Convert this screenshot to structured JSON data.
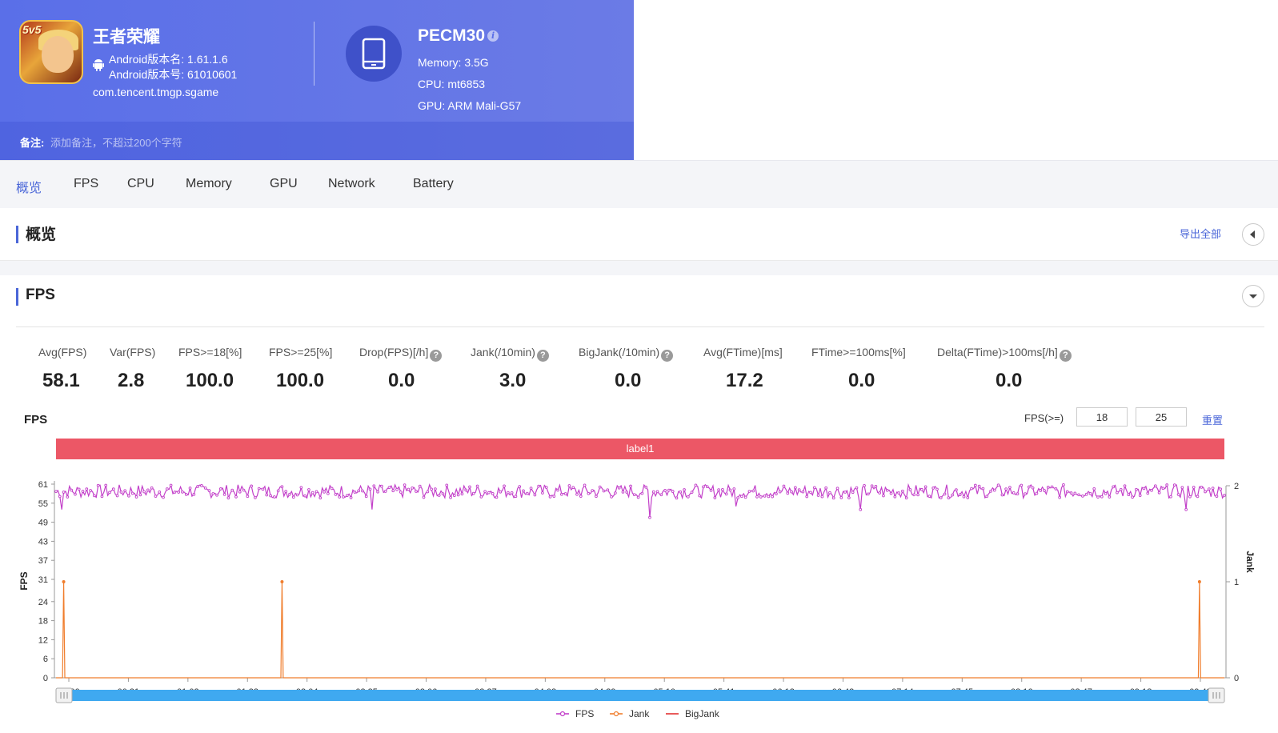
{
  "app": {
    "name": "王者荣耀",
    "version_name": "Android版本名: 1.61.1.6",
    "version_code": "Android版本号: 61010601",
    "package": "com.tencent.tmgp.sgame",
    "icon_badge": "5v5"
  },
  "device": {
    "model": "PECM30",
    "memory": "Memory: 3.5G",
    "cpu": "CPU: mt6853",
    "gpu": "GPU: ARM Mali-G57"
  },
  "remark": {
    "label": "备注:",
    "placeholder": "添加备注，不超过200个字符"
  },
  "tabs": [
    "概览",
    "FPS",
    "CPU",
    "Memory",
    "GPU",
    "Network",
    "Battery"
  ],
  "active_tab": "概览",
  "overview": {
    "title": "概览",
    "export_label": "导出全部"
  },
  "fps_section": {
    "title": "FPS",
    "stats": [
      {
        "label": "Avg(FPS)",
        "value": "58.1",
        "help": false
      },
      {
        "label": "Var(FPS)",
        "value": "2.8",
        "help": false
      },
      {
        "label": "FPS>=18[%]",
        "value": "100.0",
        "help": false
      },
      {
        "label": "FPS>=25[%]",
        "value": "100.0",
        "help": false
      },
      {
        "label": "Drop(FPS)[/h]",
        "value": "0.0",
        "help": true
      },
      {
        "label": "Jank(/10min)",
        "value": "3.0",
        "help": true
      },
      {
        "label": "BigJank(/10min)",
        "value": "0.0",
        "help": true
      },
      {
        "label": "Avg(FTime)[ms]",
        "value": "17.2",
        "help": false
      },
      {
        "label": "FTime>=100ms[%]",
        "value": "0.0",
        "help": false
      },
      {
        "label": "Delta(FTime)>100ms[/h]",
        "value": "0.0",
        "help": true
      }
    ],
    "chart_title": "FPS",
    "threshold_label": "FPS(>=)",
    "threshold_low": "18",
    "threshold_high": "25",
    "reset_label": "重置",
    "label_band": "label1"
  },
  "colors": {
    "accent": "#4a66d8",
    "fps": "#c23fc9",
    "jank": "#f07d2c",
    "bigjank": "#e23232",
    "label_band": "#ec5766",
    "slider": "#3fa9f0"
  },
  "chart_data": {
    "type": "line",
    "xlabel": "",
    "ylabel": "FPS",
    "y2label": "Jank",
    "y_ticks": [
      0,
      6,
      12,
      18,
      24,
      31,
      37,
      43,
      49,
      55,
      61
    ],
    "y2_ticks": [
      0,
      1,
      2
    ],
    "ylim": [
      0,
      61
    ],
    "y2lim": [
      0,
      2
    ],
    "x_ticks": [
      "00:00",
      "00:31",
      "01:02",
      "01:33",
      "02:04",
      "02:35",
      "03:06",
      "03:37",
      "04:08",
      "04:39",
      "05:10",
      "05:41",
      "06:12",
      "06:43",
      "07:14",
      "07:45",
      "08:16",
      "08:47",
      "09:18",
      "09:49"
    ],
    "duration_seconds": 610,
    "series": [
      {
        "name": "FPS",
        "axis": "left",
        "mean": 58.1,
        "min": 50.5,
        "max": 61,
        "dips": [
          {
            "t": 3,
            "v": 53
          },
          {
            "t": 165,
            "v": 53
          },
          {
            "t": 310,
            "v": 50.5
          },
          {
            "t": 355,
            "v": 54
          },
          {
            "t": 420,
            "v": 53
          },
          {
            "t": 590,
            "v": 53
          }
        ]
      },
      {
        "name": "Jank",
        "axis": "right",
        "spikes": [
          {
            "t": 4,
            "v": 1
          },
          {
            "t": 118,
            "v": 1
          },
          {
            "t": 597,
            "v": 1
          }
        ]
      },
      {
        "name": "BigJank",
        "axis": "right",
        "values": []
      }
    ],
    "grid": false,
    "legend": "bottom-center"
  }
}
